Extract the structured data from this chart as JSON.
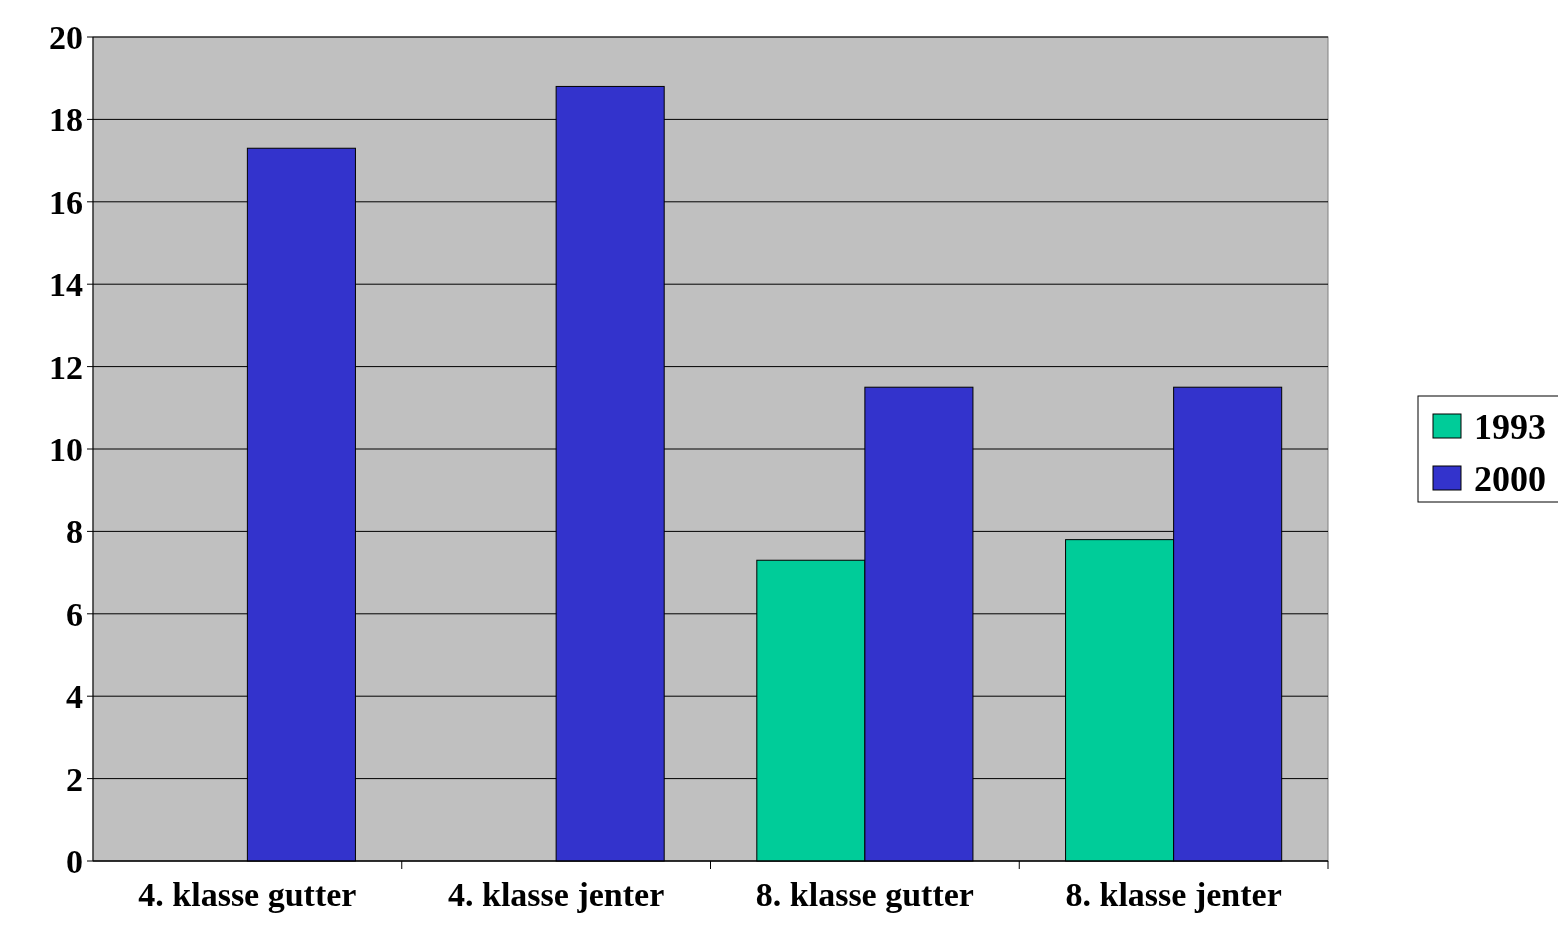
{
  "chart_data": {
    "type": "bar",
    "categories": [
      "4. klasse gutter",
      "4. klasse jenter",
      "8. klasse gutter",
      "8. klasse jenter"
    ],
    "series": [
      {
        "name": "1993",
        "color": "#00cc99",
        "values": [
          null,
          null,
          7.3,
          7.8
        ]
      },
      {
        "name": "2000",
        "color": "#3333cc",
        "values": [
          17.3,
          18.8,
          11.5,
          11.5
        ]
      }
    ],
    "ylim": [
      0,
      20
    ],
    "yticks": [
      0,
      2,
      4,
      6,
      8,
      10,
      12,
      14,
      16,
      18,
      20
    ],
    "grid": "y",
    "legend": "right"
  }
}
